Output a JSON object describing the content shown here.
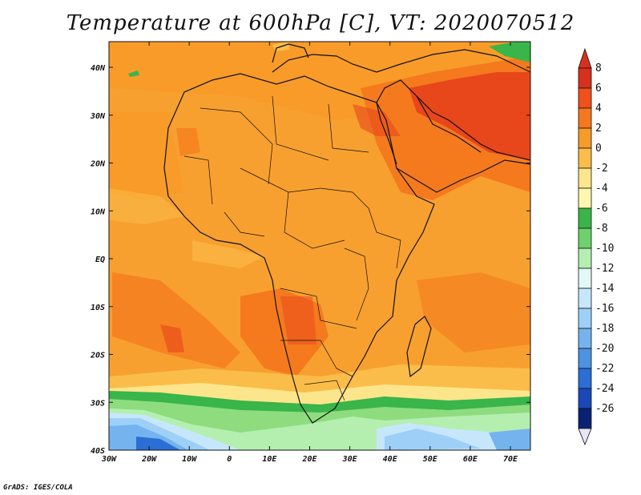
{
  "title": "Temperature at 600hPa [C], VT: 2020070512",
  "credit": "GrADS: IGES/COLA",
  "lat_labels": [
    "40N",
    "30N",
    "20N",
    "10N",
    "EQ",
    "10S",
    "20S",
    "30S",
    "40S"
  ],
  "lon_labels": [
    "30W",
    "20W",
    "10W",
    "0",
    "10E",
    "20E",
    "30E",
    "40E",
    "50E",
    "60E",
    "70E"
  ],
  "colorbar": {
    "labels": [
      "8",
      "6",
      "4",
      "2",
      "0",
      "-2",
      "-4",
      "-6",
      "-8",
      "-10",
      "-12",
      "-14",
      "-16",
      "-18",
      "-20",
      "-22",
      "-24",
      "-26"
    ],
    "colors": [
      "#d7301f",
      "#f0501c",
      "#f5781e",
      "#f79a28",
      "#fbbd4a",
      "#fde58c",
      "#fff7b0",
      "#39b54a",
      "#6fd16b",
      "#b4efb0",
      "#e2f8f6",
      "#c6e7fb",
      "#9ed0f7",
      "#75b3ef",
      "#4d92e3",
      "#2b6ed6",
      "#1a48b8",
      "#0a2274"
    ]
  },
  "fields": {
    "background_color": "#f7a030",
    "warm_color": "#f47a1d",
    "hot_color": "#e8461b",
    "cool_band_color": "#fde58c",
    "green_band_color": "#39b54a",
    "light_green_color": "#8fdc7f",
    "blue_color": "#75b3ef",
    "deep_blue_color": "#2b6ed6"
  }
}
